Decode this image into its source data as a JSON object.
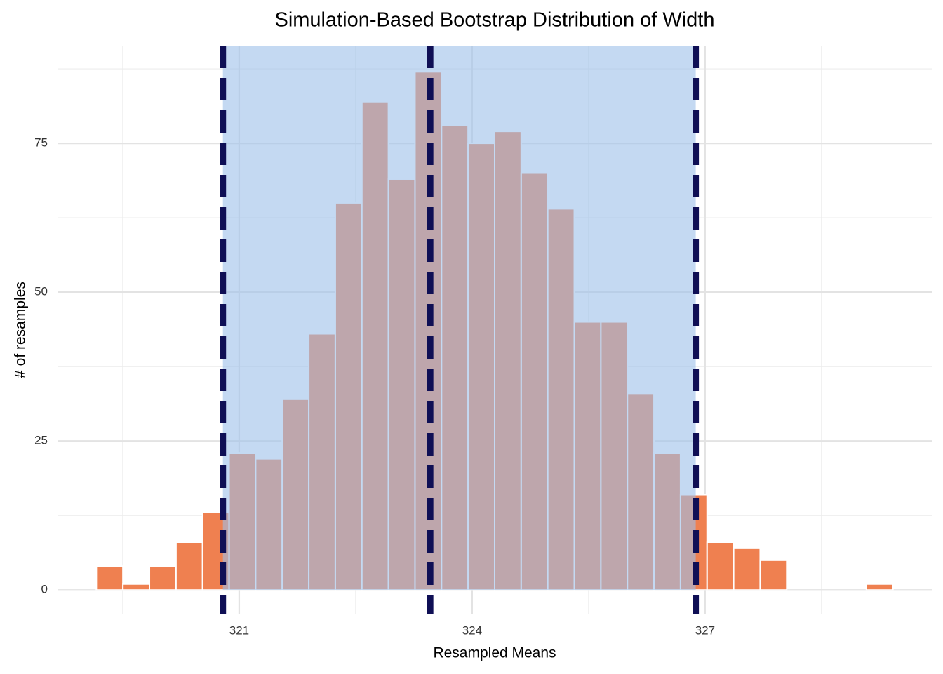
{
  "chart_data": {
    "type": "histogram",
    "title": "Simulation-Based Bootstrap Distribution of Width",
    "x_label": "Resampled Means",
    "y_label": "# of resamples",
    "bins": [
      319.16,
      319.502,
      319.844,
      320.186,
      320.528,
      320.87,
      321.212,
      321.554,
      321.896,
      322.238,
      322.58,
      322.922,
      323.264,
      323.606,
      323.948,
      324.29,
      324.632,
      324.974,
      325.316,
      325.658,
      326.0,
      326.342,
      326.684,
      327.026,
      327.368,
      327.71,
      328.052,
      328.394,
      328.736,
      329.078,
      329.42
    ],
    "values": [
      4,
      1,
      4,
      8,
      13,
      23,
      22,
      32,
      43,
      65,
      82,
      69,
      87,
      78,
      75,
      77,
      70,
      64,
      45,
      45,
      33,
      23,
      16,
      8,
      7,
      5,
      0,
      0,
      0,
      1
    ],
    "color": "#ef8050",
    "ci": [
      320.79,
      326.88
    ],
    "ci_color": "#9cc0ea",
    "center": 323.46,
    "line_color": "#0f0f55",
    "xlim": [
      318.66,
      329.92
    ],
    "xticks": [
      321,
      324,
      327
    ],
    "minor_xticks": [
      319.5,
      322.5,
      325.5,
      328.5
    ],
    "ylim": [
      -4.1,
      91.4
    ],
    "yticks": [
      0,
      25,
      50,
      75
    ],
    "minor_yticks": [
      12.5,
      37.5,
      62.5,
      87.5
    ],
    "grid": true
  }
}
